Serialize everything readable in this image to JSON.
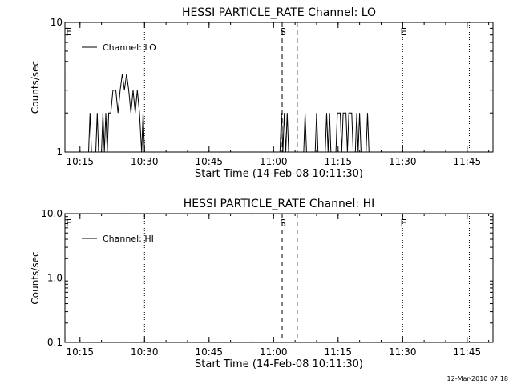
{
  "chart_data": [
    {
      "type": "line",
      "title": "HESSI PARTICLE_RATE Channel: LO",
      "xlabel": "Start Time (14-Feb-08 10:11:30)",
      "ylabel": "Counts/sec",
      "yscale": "log",
      "ylim": [
        1,
        10
      ],
      "ytick_labels": [
        "1",
        "10"
      ],
      "xlim": [
        "10:11:30",
        "11:51:00"
      ],
      "xtick_labels": [
        "10:15",
        "10:30",
        "10:45",
        "11:00",
        "11:15",
        "11:30",
        "11:45"
      ],
      "legend": {
        "position": "top-left",
        "entries": [
          "Channel: LO"
        ]
      },
      "markers": [
        {
          "label": "E",
          "time": "10:11:30",
          "style": "dotted"
        },
        {
          "label": "",
          "time": "10:30:00",
          "style": "dotted"
        },
        {
          "label": "S",
          "time": "11:02:00",
          "style": "dashed"
        },
        {
          "label": "",
          "time": "11:05:30",
          "style": "dashed"
        },
        {
          "label": "E",
          "time": "11:30:00",
          "style": "dotted"
        },
        {
          "label": "",
          "time": "11:45:30",
          "style": "dotted"
        }
      ],
      "series": [
        {
          "name": "Channel: LO",
          "points": [
            [
              "10:17:00",
              1
            ],
            [
              "10:17:20",
              2
            ],
            [
              "10:17:40",
              1
            ],
            [
              "10:18:40",
              1
            ],
            [
              "10:19:00",
              2
            ],
            [
              "10:19:20",
              1
            ],
            [
              "10:20:00",
              1
            ],
            [
              "10:20:20",
              2
            ],
            [
              "10:20:40",
              1
            ],
            [
              "10:21:00",
              2
            ],
            [
              "10:21:20",
              1
            ],
            [
              "10:21:40",
              2
            ],
            [
              "10:22:10",
              2
            ],
            [
              "10:22:40",
              3
            ],
            [
              "10:23:20",
              3
            ],
            [
              "10:23:50",
              2
            ],
            [
              "10:24:20",
              3
            ],
            [
              "10:24:50",
              4
            ],
            [
              "10:25:20",
              3
            ],
            [
              "10:25:50",
              4
            ],
            [
              "10:26:20",
              3
            ],
            [
              "10:26:50",
              2
            ],
            [
              "10:27:20",
              3
            ],
            [
              "10:27:50",
              2
            ],
            [
              "10:28:20",
              3
            ],
            [
              "10:28:50",
              2
            ],
            [
              "10:29:20",
              1
            ],
            [
              "10:29:40",
              2
            ],
            [
              "10:30:00",
              1
            ],
            [
              "11:01:30",
              1
            ],
            [
              "11:01:50",
              2
            ],
            [
              "11:02:10",
              1
            ],
            [
              "11:02:30",
              2
            ],
            [
              "11:02:50",
              1
            ],
            [
              "11:03:10",
              2
            ],
            [
              "11:03:30",
              1
            ],
            [
              "11:07:00",
              1
            ],
            [
              "11:07:20",
              2
            ],
            [
              "11:07:40",
              1
            ],
            [
              "11:09:40",
              1
            ],
            [
              "11:10:00",
              2
            ],
            [
              "11:10:20",
              1
            ],
            [
              "11:12:00",
              1
            ],
            [
              "11:12:20",
              2
            ],
            [
              "11:12:40",
              1
            ],
            [
              "11:13:00",
              2
            ],
            [
              "11:13:20",
              1
            ],
            [
              "11:14:30",
              1
            ],
            [
              "11:14:50",
              2
            ],
            [
              "11:15:30",
              2
            ],
            [
              "11:15:50",
              1
            ],
            [
              "11:16:10",
              2
            ],
            [
              "11:16:50",
              2
            ],
            [
              "11:17:10",
              1
            ],
            [
              "11:17:30",
              2
            ],
            [
              "11:18:10",
              2
            ],
            [
              "11:18:30",
              1
            ],
            [
              "11:19:00",
              1
            ],
            [
              "11:19:20",
              2
            ],
            [
              "11:19:40",
              1
            ],
            [
              "11:20:00",
              2
            ],
            [
              "11:20:20",
              1
            ],
            [
              "11:21:30",
              1
            ],
            [
              "11:21:50",
              2
            ],
            [
              "11:22:10",
              1
            ]
          ]
        }
      ]
    },
    {
      "type": "line",
      "title": "HESSI PARTICLE_RATE Channel: HI",
      "xlabel": "Start Time (14-Feb-08 10:11:30)",
      "ylabel": "Counts/sec",
      "yscale": "log",
      "ylim": [
        0.1,
        10
      ],
      "ytick_labels": [
        "0.1",
        "1.0",
        "10.0"
      ],
      "xlim": [
        "10:11:30",
        "11:51:00"
      ],
      "xtick_labels": [
        "10:15",
        "10:30",
        "10:45",
        "11:00",
        "11:15",
        "11:30",
        "11:45"
      ],
      "legend": {
        "position": "top-left",
        "entries": [
          "Channel: HI"
        ]
      },
      "markers": [
        {
          "label": "E",
          "time": "10:11:30",
          "style": "dotted"
        },
        {
          "label": "",
          "time": "10:30:00",
          "style": "dotted"
        },
        {
          "label": "S",
          "time": "11:02:00",
          "style": "dashed"
        },
        {
          "label": "",
          "time": "11:05:30",
          "style": "dashed"
        },
        {
          "label": "E",
          "time": "11:30:00",
          "style": "dotted"
        },
        {
          "label": "",
          "time": "11:45:30",
          "style": "dotted"
        }
      ],
      "series": [
        {
          "name": "Channel: HI",
          "points": []
        }
      ]
    }
  ],
  "footer": {
    "stamp": "12-Mar-2010 07:18"
  }
}
